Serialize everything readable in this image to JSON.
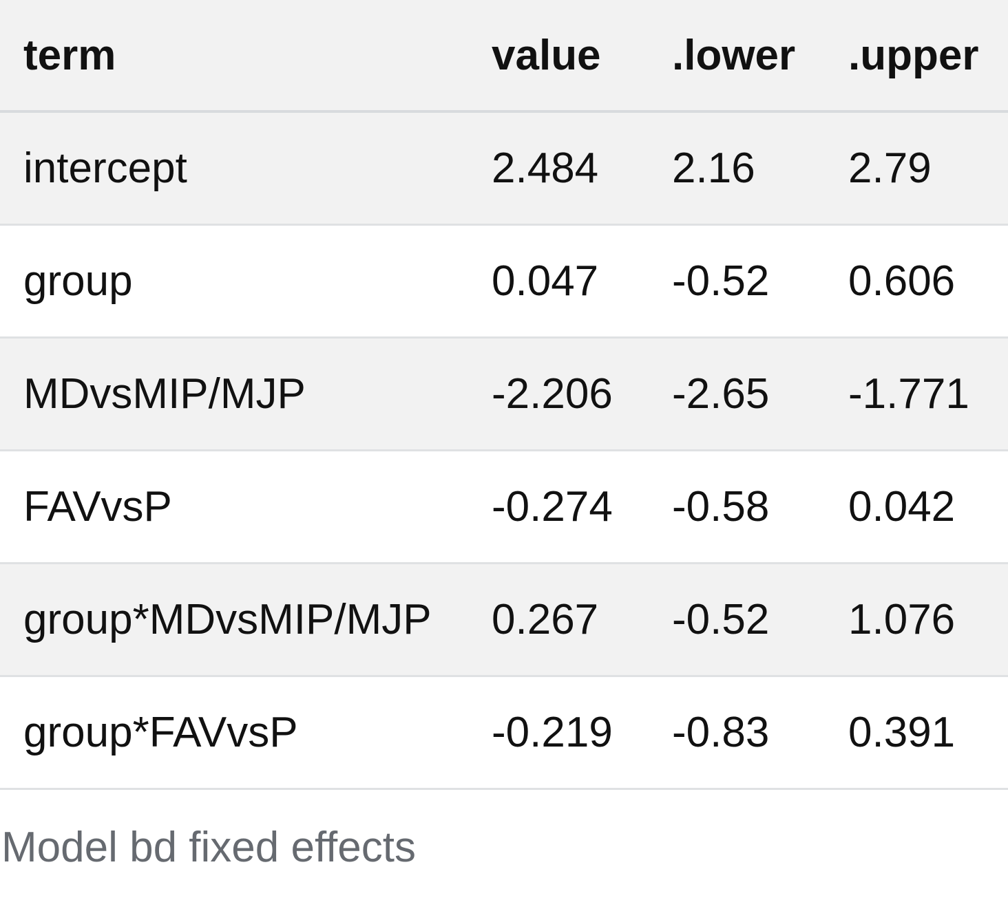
{
  "table": {
    "columns": [
      "term",
      "value",
      ".lower",
      ".upper"
    ],
    "rows": [
      [
        "intercept",
        "2.484",
        "2.16",
        "2.79"
      ],
      [
        "group",
        "0.047",
        "-0.52",
        "0.606"
      ],
      [
        "MDvsMIP/MJP",
        "-2.206",
        "-2.65",
        "-1.771"
      ],
      [
        "FAVvsP",
        "-0.274",
        "-0.58",
        "0.042"
      ],
      [
        "group*MDvsMIP/MJP",
        "0.267",
        "-0.52",
        "1.076"
      ],
      [
        "group*FAVvsP",
        "-0.219",
        "-0.83",
        "0.391"
      ]
    ],
    "caption": "Model bd fixed effects"
  },
  "colors": {
    "header_bg": "#f2f2f2",
    "stripe_bg": "#f2f2f2",
    "row_bg": "#ffffff",
    "border": "#dfe1e3",
    "caption_text": "#666a70"
  }
}
